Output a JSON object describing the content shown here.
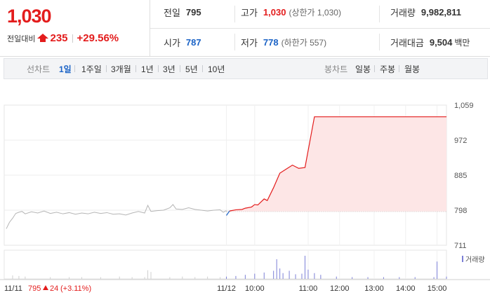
{
  "price": {
    "current": "1,030",
    "change_label": "전일대비",
    "change_value": "235",
    "change_pct": "+29.56%"
  },
  "stats": {
    "prev_close": {
      "label": "전일",
      "value": "795"
    },
    "high": {
      "label": "고가",
      "value": "1,030",
      "sub": "(상한가 1,030)"
    },
    "volume": {
      "label": "거래량",
      "value": "9,982,811"
    },
    "open": {
      "label": "시가",
      "value": "787"
    },
    "low": {
      "label": "저가",
      "value": "778",
      "sub": "(하한가 557)"
    },
    "amount": {
      "label": "거래대금",
      "value": "9,504",
      "unit": "백만"
    }
  },
  "line_tabs": {
    "label": "선차트",
    "items": [
      "1일",
      "1주일",
      "3개월",
      "1년",
      "3년",
      "5년",
      "10년"
    ],
    "active": 0
  },
  "candle_tabs": {
    "label": "봉차트",
    "items": [
      "일봉",
      "주봉",
      "월봉"
    ]
  },
  "colors": {
    "up": "#e31c1c",
    "down": "#1b63c6",
    "fill": "#fde6e6"
  },
  "chart_data": {
    "type": "line",
    "x": [
      "11/11",
      "11/12",
      "10:00",
      "11:00",
      "12:00",
      "13:00",
      "14:00",
      "15:00"
    ],
    "yticks": [
      1059,
      972,
      885,
      798,
      711
    ],
    "ylim": [
      711,
      1059
    ],
    "baseline": 795,
    "legend_volume": "거래량",
    "prev_day_note": {
      "date": "11/11",
      "close": "795",
      "change": "24",
      "pct": "(+3.11%)"
    },
    "series": [
      {
        "values": [
          [
            0,
            752
          ],
          [
            1,
            768
          ],
          [
            2,
            778
          ],
          [
            3,
            790
          ],
          [
            4,
            793
          ],
          [
            5,
            795
          ],
          [
            6,
            789
          ],
          [
            8,
            794
          ],
          [
            10,
            791
          ],
          [
            12,
            796
          ],
          [
            14,
            790
          ],
          [
            16,
            793
          ],
          [
            18,
            789
          ],
          [
            20,
            792
          ],
          [
            22,
            788
          ],
          [
            24,
            791
          ],
          [
            26,
            789
          ],
          [
            28,
            793
          ],
          [
            30,
            790
          ],
          [
            32,
            792
          ],
          [
            34,
            788
          ],
          [
            36,
            789
          ],
          [
            38,
            786
          ],
          [
            40,
            791
          ],
          [
            42,
            795
          ],
          [
            44,
            791
          ],
          [
            45,
            810
          ],
          [
            46,
            795
          ],
          [
            48,
            797
          ],
          [
            50,
            798
          ],
          [
            52,
            804
          ],
          [
            53,
            812
          ],
          [
            54,
            801
          ],
          [
            56,
            800
          ],
          [
            58,
            804
          ],
          [
            60,
            800
          ],
          [
            62,
            798
          ],
          [
            64,
            796
          ],
          [
            66,
            798
          ],
          [
            68,
            799
          ],
          [
            69,
            793
          ],
          [
            70,
            797
          ]
        ]
      },
      {
        "values": [
          [
            70,
            785
          ],
          [
            71,
            796
          ],
          [
            73,
            799
          ],
          [
            75,
            800
          ],
          [
            76,
            803
          ],
          [
            78,
            806
          ],
          [
            79,
            812
          ],
          [
            80,
            811
          ],
          [
            82,
            826
          ],
          [
            83,
            822
          ],
          [
            85,
            854
          ],
          [
            87,
            890
          ],
          [
            89,
            900
          ],
          [
            91,
            910
          ],
          [
            93,
            902
          ],
          [
            95,
            904
          ],
          [
            98,
            1030
          ],
          [
            100,
            1030
          ],
          [
            110,
            1030
          ],
          [
            120,
            1030
          ],
          [
            130,
            1030
          ],
          [
            140,
            1030
          ]
        ]
      }
    ],
    "volume": [
      [
        2,
        6
      ],
      [
        4,
        5
      ],
      [
        6,
        4
      ],
      [
        14,
        3
      ],
      [
        20,
        3
      ],
      [
        24,
        3
      ],
      [
        30,
        3
      ],
      [
        36,
        4
      ],
      [
        40,
        3
      ],
      [
        44,
        3
      ],
      [
        45,
        15
      ],
      [
        46,
        12
      ],
      [
        52,
        3
      ],
      [
        56,
        4
      ],
      [
        60,
        3
      ],
      [
        64,
        4
      ],
      [
        68,
        3
      ],
      [
        70,
        4
      ],
      [
        73,
        5
      ],
      [
        76,
        7
      ],
      [
        79,
        9
      ],
      [
        82,
        11
      ],
      [
        85,
        14
      ],
      [
        86,
        34
      ],
      [
        87,
        18
      ],
      [
        88,
        10
      ],
      [
        90,
        14
      ],
      [
        92,
        8
      ],
      [
        94,
        9
      ],
      [
        95,
        40
      ],
      [
        96,
        16
      ],
      [
        98,
        10
      ],
      [
        100,
        7
      ],
      [
        105,
        4
      ],
      [
        110,
        3
      ],
      [
        115,
        3
      ],
      [
        120,
        3
      ],
      [
        125,
        3
      ],
      [
        130,
        3
      ],
      [
        136,
        3
      ],
      [
        137,
        30
      ],
      [
        140,
        4
      ]
    ]
  }
}
